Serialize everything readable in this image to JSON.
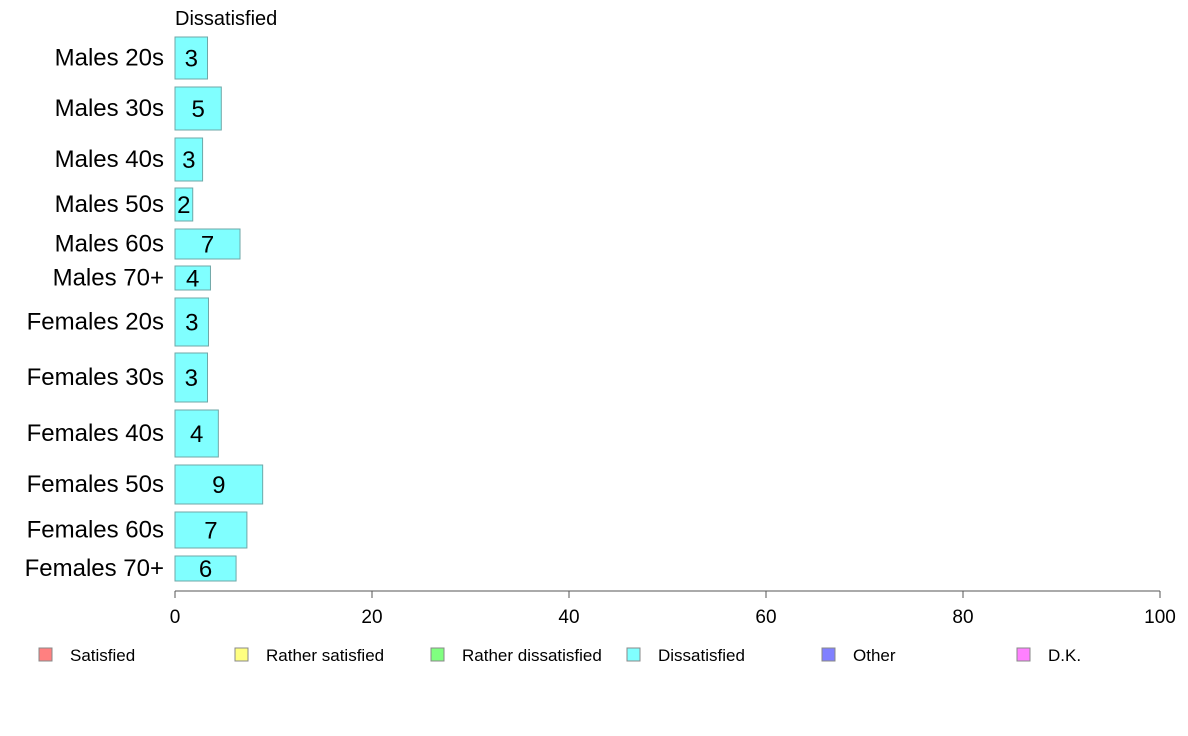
{
  "chart_data": {
    "type": "bar",
    "orientation": "horizontal",
    "panel_title": "Dissatisfied",
    "categories": [
      "Males 20s",
      "Males 30s",
      "Males 40s",
      "Males 50s",
      "Males 60s",
      "Males 70+",
      "Females 20s",
      "Females 30s",
      "Females 40s",
      "Females 50s",
      "Females 60s",
      "Females 70+"
    ],
    "series": [
      {
        "name": "Dissatisfied",
        "color": "#80ffff",
        "values": [
          3.3,
          4.7,
          2.8,
          1.8,
          6.6,
          3.6,
          3.4,
          3.3,
          4.4,
          8.9,
          7.3,
          6.2
        ],
        "labels": [
          "3",
          "5",
          "3",
          "2",
          "7",
          "4",
          "3",
          "3",
          "4",
          "9",
          "7",
          "6"
        ]
      }
    ],
    "xlim": [
      0,
      100
    ],
    "xticks": [
      0,
      20,
      40,
      60,
      80,
      100
    ],
    "legend": {
      "position": "bottom",
      "items": [
        {
          "label": "Satisfied",
          "color": "#ff8080"
        },
        {
          "label": "Rather satisfied",
          "color": "#ffff80"
        },
        {
          "label": "Rather dissatisfied",
          "color": "#80ff80"
        },
        {
          "label": "Dissatisfied",
          "color": "#80ffff"
        },
        {
          "label": "Other",
          "color": "#8080ff"
        },
        {
          "label": "D.K.",
          "color": "#ff80ff"
        }
      ]
    },
    "grid": false
  }
}
